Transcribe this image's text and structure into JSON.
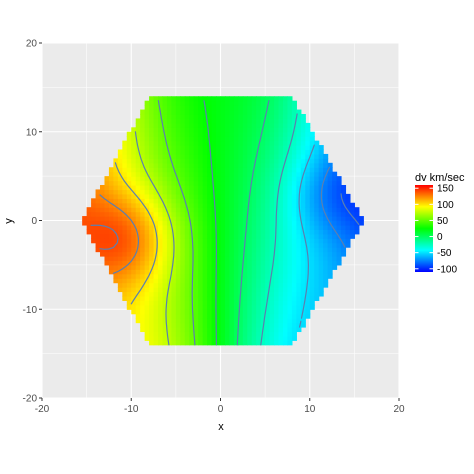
{
  "chart_data": {
    "type": "heatmap",
    "title": "",
    "xlabel": "x",
    "ylabel": "y",
    "xlim": [
      -20,
      20
    ],
    "ylim": [
      -20,
      20
    ],
    "x_ticks": [
      -20,
      -10,
      0,
      10,
      20
    ],
    "y_ticks": [
      -20,
      -10,
      0,
      10,
      20
    ],
    "x_tick_labels": [
      "-20",
      "-10",
      "0",
      "10",
      "20"
    ],
    "y_tick_labels": [
      "-20",
      "-10",
      "0",
      "10",
      "20"
    ],
    "grid": true,
    "panel_background": "#ebebeb",
    "grid_color": "#ffffff",
    "contour_color": "#5b7fb0",
    "region": {
      "shape": "hexagon",
      "vertices": [
        [
          -15.5,
          0
        ],
        [
          -8,
          14
        ],
        [
          8,
          14
        ],
        [
          16,
          0
        ],
        [
          8,
          -14
        ],
        [
          -8,
          -14
        ]
      ]
    },
    "value_model": {
      "description_in_data_units": "dv varies mainly with x; peak near (-10,-2) about 150, trough near (12,2) about -100",
      "peak": {
        "x": -10.5,
        "y": -2,
        "value": 150
      },
      "trough": {
        "x": 12,
        "y": 3,
        "value": -100
      }
    },
    "contour_levels": [
      -90,
      -75,
      -50,
      -25,
      0,
      25,
      50,
      75,
      100,
      125,
      140
    ],
    "legend": {
      "title": "dv km/sec",
      "position": "right",
      "range": [
        -110,
        160
      ],
      "breaks": [
        150,
        100,
        50,
        0,
        -50,
        -100
      ],
      "break_labels": [
        "150",
        "100",
        "50",
        "0",
        "-50",
        "-100"
      ],
      "colors": [
        "#0000ff",
        "#00ffff",
        "#00ff00",
        "#ffff00",
        "#ff0000"
      ]
    }
  }
}
